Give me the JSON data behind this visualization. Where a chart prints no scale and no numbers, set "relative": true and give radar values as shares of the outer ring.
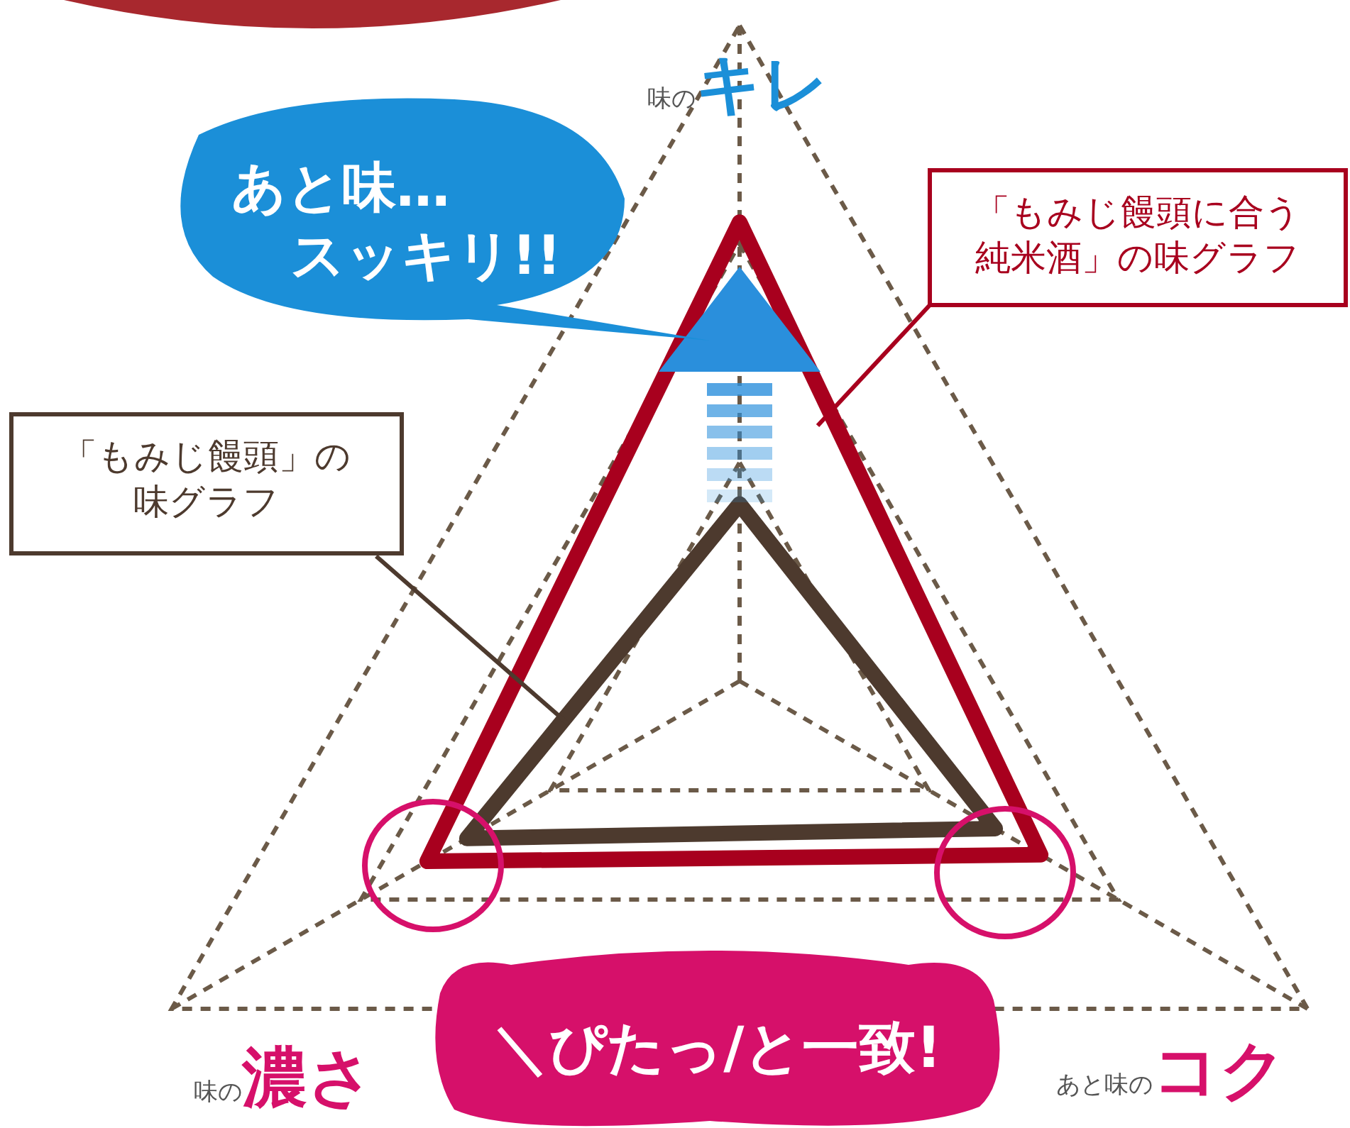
{
  "chart_data": {
    "type": "radar",
    "relative": true,
    "grid": true,
    "categories": [
      "味のキレ",
      "あと味のコク",
      "味の濃さ"
    ],
    "series": [
      {
        "name": "「もみじ饅頭に合う純米酒」の味グラフ",
        "color": "#a8001e",
        "values": [
          0.7,
          0.53,
          0.55
        ]
      },
      {
        "name": "「もみじ饅頭」の味グラフ",
        "color": "#4d3a2e",
        "values": [
          0.27,
          0.45,
          0.48
        ]
      }
    ],
    "annotations": [
      "あと味…\nスッキリ!!",
      "＼ぴたっ/と一致!"
    ]
  }
}
